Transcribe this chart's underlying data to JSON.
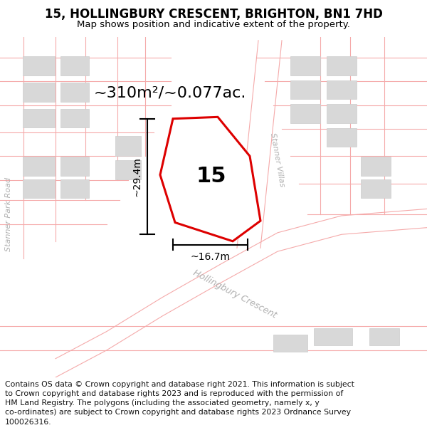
{
  "title": "15, HOLLINGBURY CRESCENT, BRIGHTON, BN1 7HD",
  "subtitle": "Map shows position and indicative extent of the property.",
  "footer": "Contains OS data © Crown copyright and database right 2021. This information is subject\nto Crown copyright and database rights 2023 and is reproduced with the permission of\nHM Land Registry. The polygons (including the associated geometry, namely x, y\nco-ordinates) are subject to Crown copyright and database rights 2023 Ordnance Survey\n100026316.",
  "area_label": "~310m²/~0.077ac.",
  "number_label": "15",
  "dim_width": "~16.7m",
  "dim_height": "~29.4m",
  "road_label_hollingbury": "Hollingbury Crescent",
  "road_label_stanner_villas": "Stanner Villas",
  "road_label_stanner_park": "Stanner Park Road",
  "bg_color": "#ffffff",
  "map_bg": "#ffffff",
  "building_fill": "#d8d8d8",
  "building_edge": "#cccccc",
  "road_line_color": "#f5aaaa",
  "property_edge_color": "#dd0000",
  "property_fill": "#ffffff",
  "dim_color": "#000000",
  "label_color": "#cccccc",
  "title_fontsize": 12,
  "subtitle_fontsize": 9.5,
  "footer_fontsize": 7.8,
  "area_fontsize": 16,
  "number_fontsize": 22,
  "dim_fontsize": 10,
  "road_fontsize": 9
}
